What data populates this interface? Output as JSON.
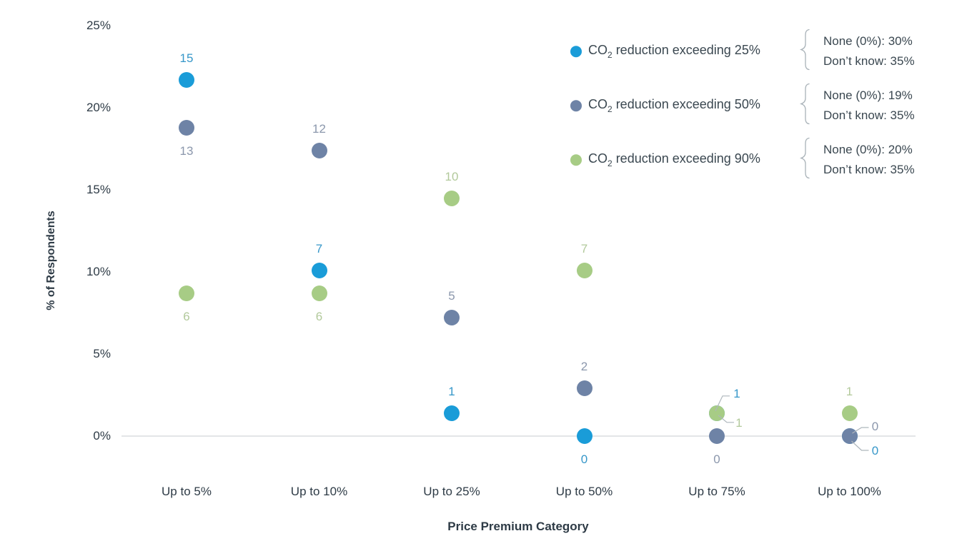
{
  "chart_data": {
    "type": "scatter",
    "title": "",
    "xlabel": "Price Premium Category",
    "ylabel": "% of Respondents",
    "categories": [
      "Up to 5%",
      "Up to 10%",
      "Up to 25%",
      "Up to 50%",
      "Up to 75%",
      "Up to 100%"
    ],
    "y_tick_labels": [
      "25%",
      "20%",
      "15%",
      "10%",
      "5%",
      "0%"
    ],
    "y_tick_values": [
      25,
      20,
      15,
      10,
      5,
      0
    ],
    "ylim": [
      0,
      25
    ],
    "grid": false,
    "legend_position": "top-right",
    "axis_line_color": "#e3e5e7",
    "leader_line_color": "#aeb6bc",
    "brace_color": "#a9b2b8",
    "series": [
      {
        "name": "CO2 reduction exceeding 25%",
        "name_parts": {
          "prefix": "CO",
          "sub": "2",
          "suffix": " reduction exceeding 25%"
        },
        "color": "#1a9cd8",
        "label_color": "#3697c9",
        "counts": [
          15,
          7,
          1,
          0,
          1,
          0
        ],
        "pct": [
          21.7,
          10.1,
          1.4,
          0,
          1.4,
          0
        ],
        "label_pos": [
          "above",
          "above",
          "above",
          "below",
          "leader_a",
          "leader_d"
        ],
        "annotation_lines": [
          "None (0%): 30%",
          "Don’t know: 35%"
        ]
      },
      {
        "name": "CO2 reduction exceeding 50%",
        "name_parts": {
          "prefix": "CO",
          "sub": "2",
          "suffix": " reduction exceeding 50%"
        },
        "color": "#6e83a6",
        "label_color": "#8b97ac",
        "counts": [
          13,
          12,
          5,
          2,
          0,
          0
        ],
        "pct": [
          18.8,
          17.4,
          7.2,
          2.9,
          0,
          0
        ],
        "label_pos": [
          "below",
          "above",
          "above",
          "above",
          "below",
          "leader_c"
        ],
        "annotation_lines": [
          "None (0%): 19%",
          "Don’t know: 35%"
        ]
      },
      {
        "name": "CO2 reduction exceeding 90%",
        "name_parts": {
          "prefix": "CO",
          "sub": "2",
          "suffix": " reduction exceeding 90%"
        },
        "color": "#a7cc85",
        "label_color": "#b2c99b",
        "counts": [
          6,
          6,
          10,
          7,
          1,
          1
        ],
        "pct": [
          8.7,
          8.7,
          14.5,
          10.1,
          1.4,
          1.4
        ],
        "label_pos": [
          "below",
          "below",
          "above",
          "above",
          "leader_b",
          "above"
        ],
        "annotation_lines": [
          "None (0%): 20%",
          "Don’t know: 35%"
        ]
      }
    ]
  }
}
